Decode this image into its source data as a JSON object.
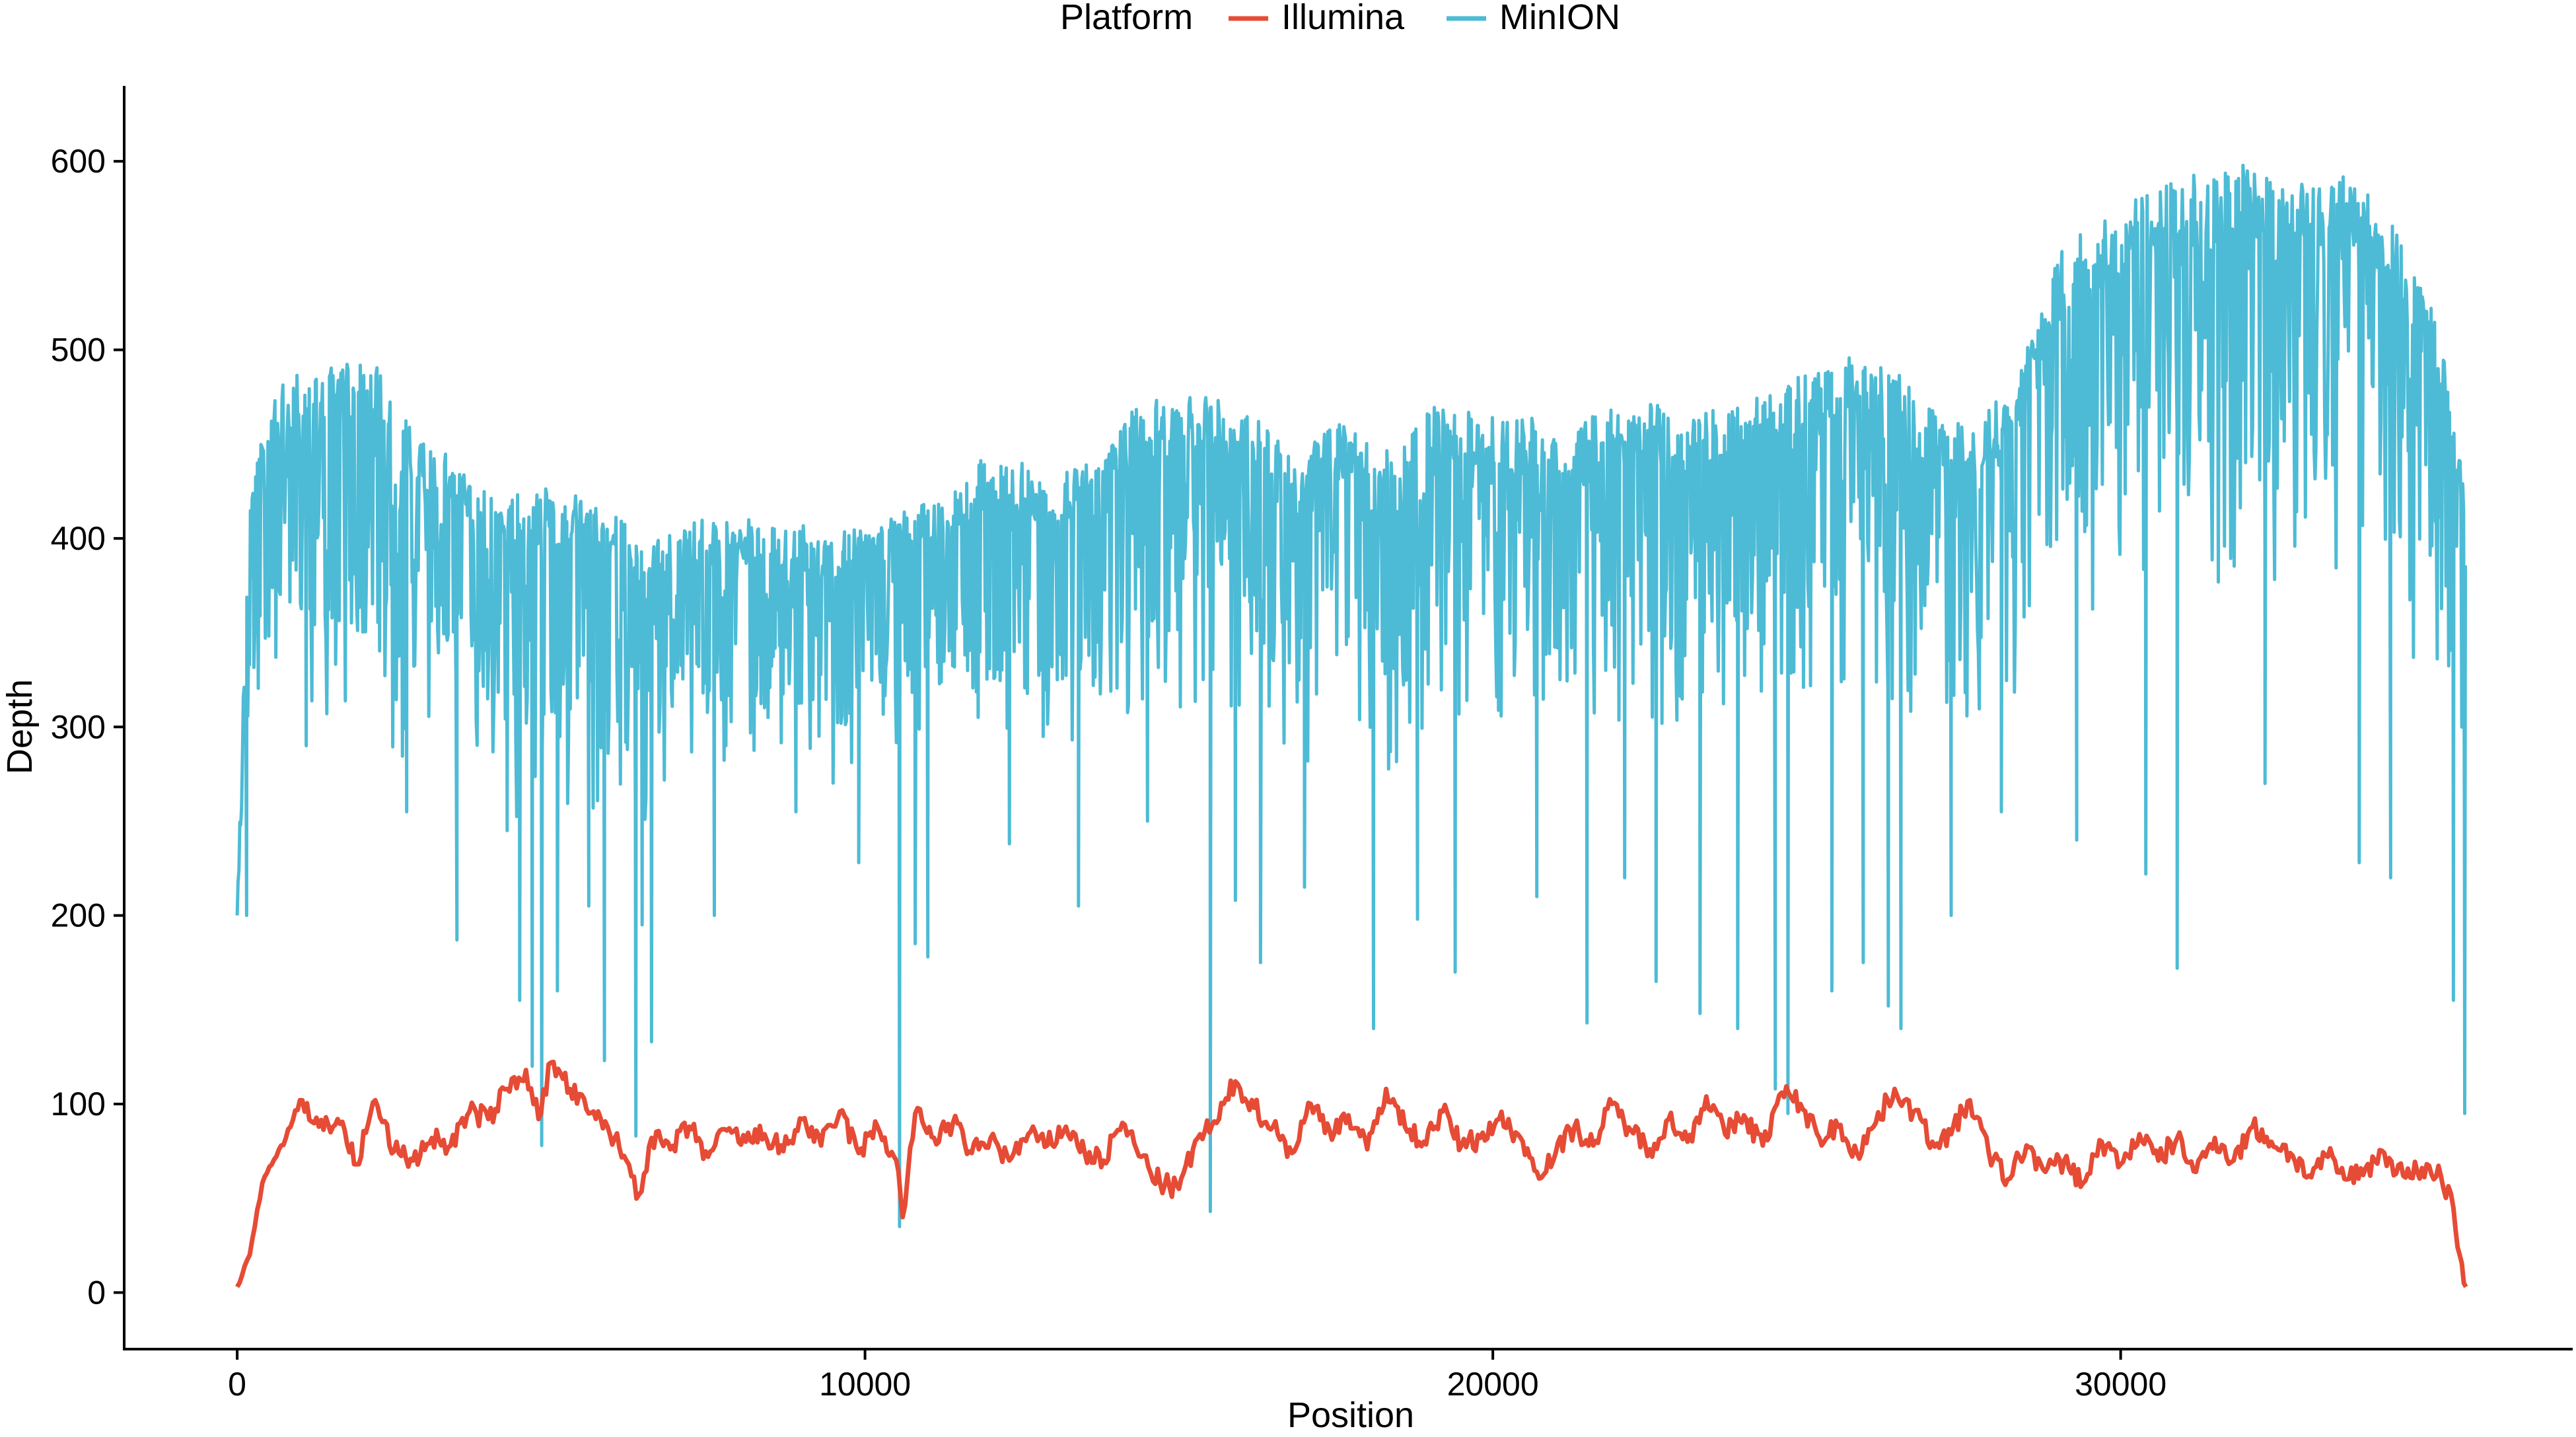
{
  "chart_data": {
    "type": "line",
    "xlabel": "Position",
    "ylabel": "Depth",
    "xlim": [
      -1800,
      37200
    ],
    "ylim": [
      -30,
      640
    ],
    "x_ticks": [
      0,
      10000,
      20000,
      30000
    ],
    "x_tick_labels": [
      "0",
      "10000",
      "20000",
      "30000"
    ],
    "y_ticks": [
      0,
      100,
      200,
      300,
      400,
      500,
      600
    ],
    "y_tick_labels": [
      "0",
      "100",
      "200",
      "300",
      "400",
      "500",
      "600"
    ],
    "grid": false,
    "legend": {
      "position": "top",
      "title": "Platform",
      "entries": [
        "Illumina",
        "MinION"
      ]
    },
    "series": [
      {
        "name": "Illumina",
        "color": "#E64B35",
        "x": [
          0,
          200,
          400,
          700,
          1000,
          1300,
          1600,
          1900,
          2200,
          2500,
          2800,
          3100,
          3400,
          3700,
          4000,
          4300,
          4600,
          4800,
          5000,
          5300,
          5600,
          5900,
          6200,
          6400,
          6600,
          6900,
          7200,
          7500,
          7800,
          8100,
          8400,
          8700,
          9000,
          9300,
          9600,
          9900,
          10200,
          10500,
          10600,
          10800,
          11100,
          11400,
          11700,
          12000,
          12300,
          12600,
          12900,
          13200,
          13500,
          13800,
          14100,
          14400,
          14700,
          15000,
          15300,
          15600,
          15900,
          16200,
          16500,
          16800,
          17100,
          17400,
          17700,
          18000,
          18300,
          18600,
          18900,
          19200,
          19500,
          19800,
          20100,
          20400,
          20700,
          21000,
          21300,
          21600,
          21900,
          22200,
          22500,
          22800,
          23100,
          23400,
          23700,
          24000,
          24300,
          24600,
          24900,
          25200,
          25500,
          25800,
          26100,
          26400,
          26700,
          27000,
          27300,
          27600,
          27900,
          28200,
          28500,
          28800,
          29100,
          29400,
          29700,
          30000,
          30300,
          30600,
          30900,
          31200,
          31500,
          31800,
          32100,
          32400,
          32700,
          33000,
          33300,
          33600,
          33900,
          34200,
          34500,
          34800,
          35100,
          35300,
          35400,
          35500
        ],
        "y": [
          3,
          20,
          58,
          78,
          102,
          88,
          92,
          68,
          102,
          75,
          70,
          82,
          78,
          96,
          92,
          108,
          118,
          92,
          122,
          108,
          95,
          88,
          70,
          52,
          82,
          76,
          88,
          72,
          86,
          80,
          84,
          75,
          92,
          78,
          96,
          74,
          88,
          70,
          40,
          95,
          82,
          90,
          74,
          82,
          70,
          84,
          78,
          88,
          74,
          70,
          90,
          72,
          58,
          55,
          82,
          90,
          112,
          98,
          88,
          74,
          100,
          86,
          94,
          76,
          108,
          88,
          80,
          96,
          78,
          82,
          92,
          84,
          64,
          74,
          88,
          78,
          100,
          86,
          76,
          92,
          80,
          104,
          84,
          94,
          78,
          106,
          100,
          82,
          88,
          74,
          90,
          108,
          96,
          80,
          84,
          102,
          74,
          60,
          78,
          64,
          70,
          58,
          80,
          68,
          84,
          70,
          82,
          64,
          82,
          70,
          88,
          80,
          74,
          62,
          72,
          60,
          66,
          74,
          62,
          66,
          62,
          45,
          20,
          3
        ]
      },
      {
        "name": "MinION",
        "color": "#4DBBD5",
        "x": [
          0,
          100,
          200,
          350,
          500,
          800,
          1100,
          1400,
          1700,
          2000,
          2300,
          2600,
          2900,
          3200,
          3500,
          3800,
          4100,
          4400,
          4700,
          5000,
          5300,
          5600,
          5900,
          6200,
          6500,
          6800,
          7100,
          7400,
          7700,
          8000,
          8300,
          8600,
          8900,
          9200,
          9500,
          9800,
          10100,
          10400,
          10700,
          11000,
          11300,
          11600,
          11900,
          12200,
          12500,
          12800,
          13100,
          13400,
          13700,
          14000,
          14300,
          14600,
          14900,
          15200,
          15500,
          15800,
          16100,
          16400,
          16700,
          17000,
          17300,
          17600,
          17900,
          18200,
          18500,
          18800,
          19100,
          19400,
          19700,
          20000,
          20300,
          20600,
          20900,
          21200,
          21500,
          21800,
          22100,
          22400,
          22700,
          23000,
          23300,
          23600,
          23900,
          24200,
          24500,
          24800,
          25100,
          25400,
          25700,
          26000,
          26300,
          26600,
          26900,
          27200,
          27500,
          27800,
          28100,
          28400,
          28700,
          29000,
          29300,
          29600,
          29900,
          30200,
          30500,
          30800,
          31100,
          31400,
          31700,
          32000,
          32300,
          32600,
          32900,
          33200,
          33500,
          33800,
          34100,
          34400,
          34700,
          35000,
          35200,
          35350,
          35450,
          35500
        ],
        "y_upper": [
          200,
          330,
          420,
          450,
          470,
          485,
          490,
          490,
          492,
          495,
          490,
          468,
          452,
          450,
          438,
          430,
          420,
          425,
          422,
          428,
          425,
          418,
          415,
          408,
          396,
          402,
          408,
          410,
          408,
          412,
          410,
          408,
          410,
          405,
          402,
          405,
          404,
          412,
          415,
          420,
          425,
          430,
          445,
          442,
          440,
          430,
          432,
          442,
          438,
          455,
          472,
          478,
          472,
          475,
          478,
          468,
          470,
          462,
          455,
          452,
          458,
          462,
          455,
          448,
          445,
          460,
          472,
          470,
          468,
          465,
          462,
          465,
          455,
          448,
          465,
          470,
          468,
          472,
          470,
          465,
          468,
          470,
          472,
          475,
          478,
          485,
          490,
          495,
          500,
          498,
          490,
          485,
          470,
          465,
          462,
          468,
          478,
          490,
          520,
          550,
          562,
          568,
          578,
          580,
          585,
          590,
          595,
          592,
          598,
          605,
          592,
          585,
          588,
          590,
          595,
          590,
          575,
          565,
          540,
          520,
          490,
          460,
          430,
          410
        ],
        "y_lower": [
          200,
          240,
          300,
          320,
          330,
          320,
          300,
          305,
          310,
          300,
          295,
          280,
          290,
          300,
          295,
          290,
          270,
          250,
          240,
          250,
          260,
          255,
          250,
          250,
          250,
          270,
          280,
          280,
          270,
          275,
          280,
          270,
          275,
          270,
          265,
          260,
          270,
          275,
          280,
          285,
          290,
          300,
          290,
          280,
          275,
          270,
          280,
          285,
          280,
          300,
          310,
          310,
          300,
          300,
          305,
          300,
          300,
          290,
          285,
          280,
          290,
          295,
          285,
          280,
          275,
          290,
          310,
          305,
          300,
          295,
          290,
          300,
          290,
          280,
          300,
          305,
          300,
          305,
          300,
          295,
          300,
          305,
          305,
          310,
          310,
          315,
          320,
          320,
          325,
          320,
          315,
          310,
          300,
          295,
          290,
          300,
          310,
          320,
          340,
          350,
          355,
          360,
          365,
          365,
          370,
          372,
          375,
          372,
          378,
          380,
          375,
          370,
          372,
          375,
          378,
          370,
          360,
          350,
          335,
          320,
          300,
          280,
          250,
          100
        ],
        "dips": [
          [
            150,
            200
          ],
          [
            1100,
            290
          ],
          [
            2700,
            255
          ],
          [
            3500,
            187
          ],
          [
            4300,
            245
          ],
          [
            4500,
            155
          ],
          [
            4700,
            120
          ],
          [
            4850,
            78
          ],
          [
            5100,
            160
          ],
          [
            5600,
            205
          ],
          [
            5850,
            123
          ],
          [
            6350,
            83
          ],
          [
            6450,
            195
          ],
          [
            6600,
            133
          ],
          [
            7600,
            200
          ],
          [
            8900,
            255
          ],
          [
            9900,
            228
          ],
          [
            10550,
            35
          ],
          [
            10800,
            185
          ],
          [
            11000,
            178
          ],
          [
            12300,
            238
          ],
          [
            13400,
            205
          ],
          [
            14500,
            250
          ],
          [
            15500,
            43
          ],
          [
            15900,
            208
          ],
          [
            16300,
            175
          ],
          [
            17000,
            215
          ],
          [
            18100,
            140
          ],
          [
            18800,
            198
          ],
          [
            19400,
            170
          ],
          [
            20700,
            210
          ],
          [
            21500,
            143
          ],
          [
            22100,
            220
          ],
          [
            22600,
            165
          ],
          [
            23300,
            148
          ],
          [
            23900,
            140
          ],
          [
            24500,
            108
          ],
          [
            24700,
            95
          ],
          [
            25400,
            160
          ],
          [
            25900,
            175
          ],
          [
            26300,
            152
          ],
          [
            26500,
            140
          ],
          [
            27300,
            200
          ],
          [
            28100,
            255
          ],
          [
            29300,
            240
          ],
          [
            30400,
            222
          ],
          [
            30900,
            172
          ],
          [
            32300,
            270
          ],
          [
            33800,
            228
          ],
          [
            34300,
            220
          ],
          [
            35300,
            155
          ],
          [
            35480,
            95
          ]
        ]
      }
    ]
  }
}
